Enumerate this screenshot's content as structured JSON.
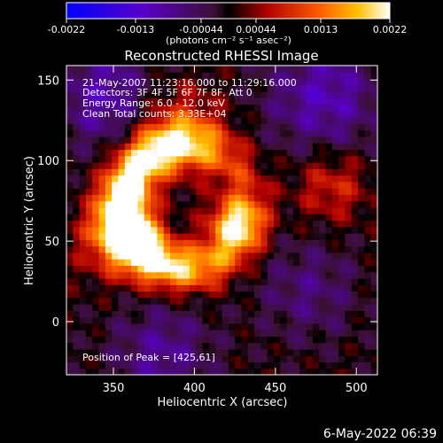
{
  "colorbar": {
    "ticks": [
      "-0.0022",
      "-0.0013",
      "-0.00044",
      "0.00044",
      "0.0013",
      "0.0022"
    ],
    "unit_label": "(photons cm⁻² s⁻¹ asec⁻²)"
  },
  "footer": {
    "timestamp": "6-May-2022 06:39"
  },
  "chart_data": {
    "type": "heatmap",
    "title": "Reconstructed RHESSI Image",
    "xlabel": "Heliocentric X (arcsec)",
    "ylabel": "Heliocentric Y (arcsec)",
    "xlim": [
      321,
      513
    ],
    "ylim": [
      -33,
      159
    ],
    "x_ticks": [
      "350",
      "400",
      "450",
      "500"
    ],
    "y_ticks": [
      "0",
      "50",
      "100",
      "150"
    ],
    "x_tick_values": [
      350,
      400,
      450,
      500
    ],
    "y_tick_values": [
      0,
      50,
      100,
      150
    ],
    "value_range": [
      -0.0022,
      0.0022
    ],
    "peak_position": [
      425,
      61
    ],
    "annotations": [
      "21-May-2007 11:23:16.000 to 11:29:16.000",
      "Detectors: 3F 4F 5F 6F 7F 8F, Att 0",
      "Energy Range: 6.0 - 12.0 keV",
      "Clean    Total counts: 3.33E+04",
      "Position of Peak = [425,61]"
    ]
  }
}
